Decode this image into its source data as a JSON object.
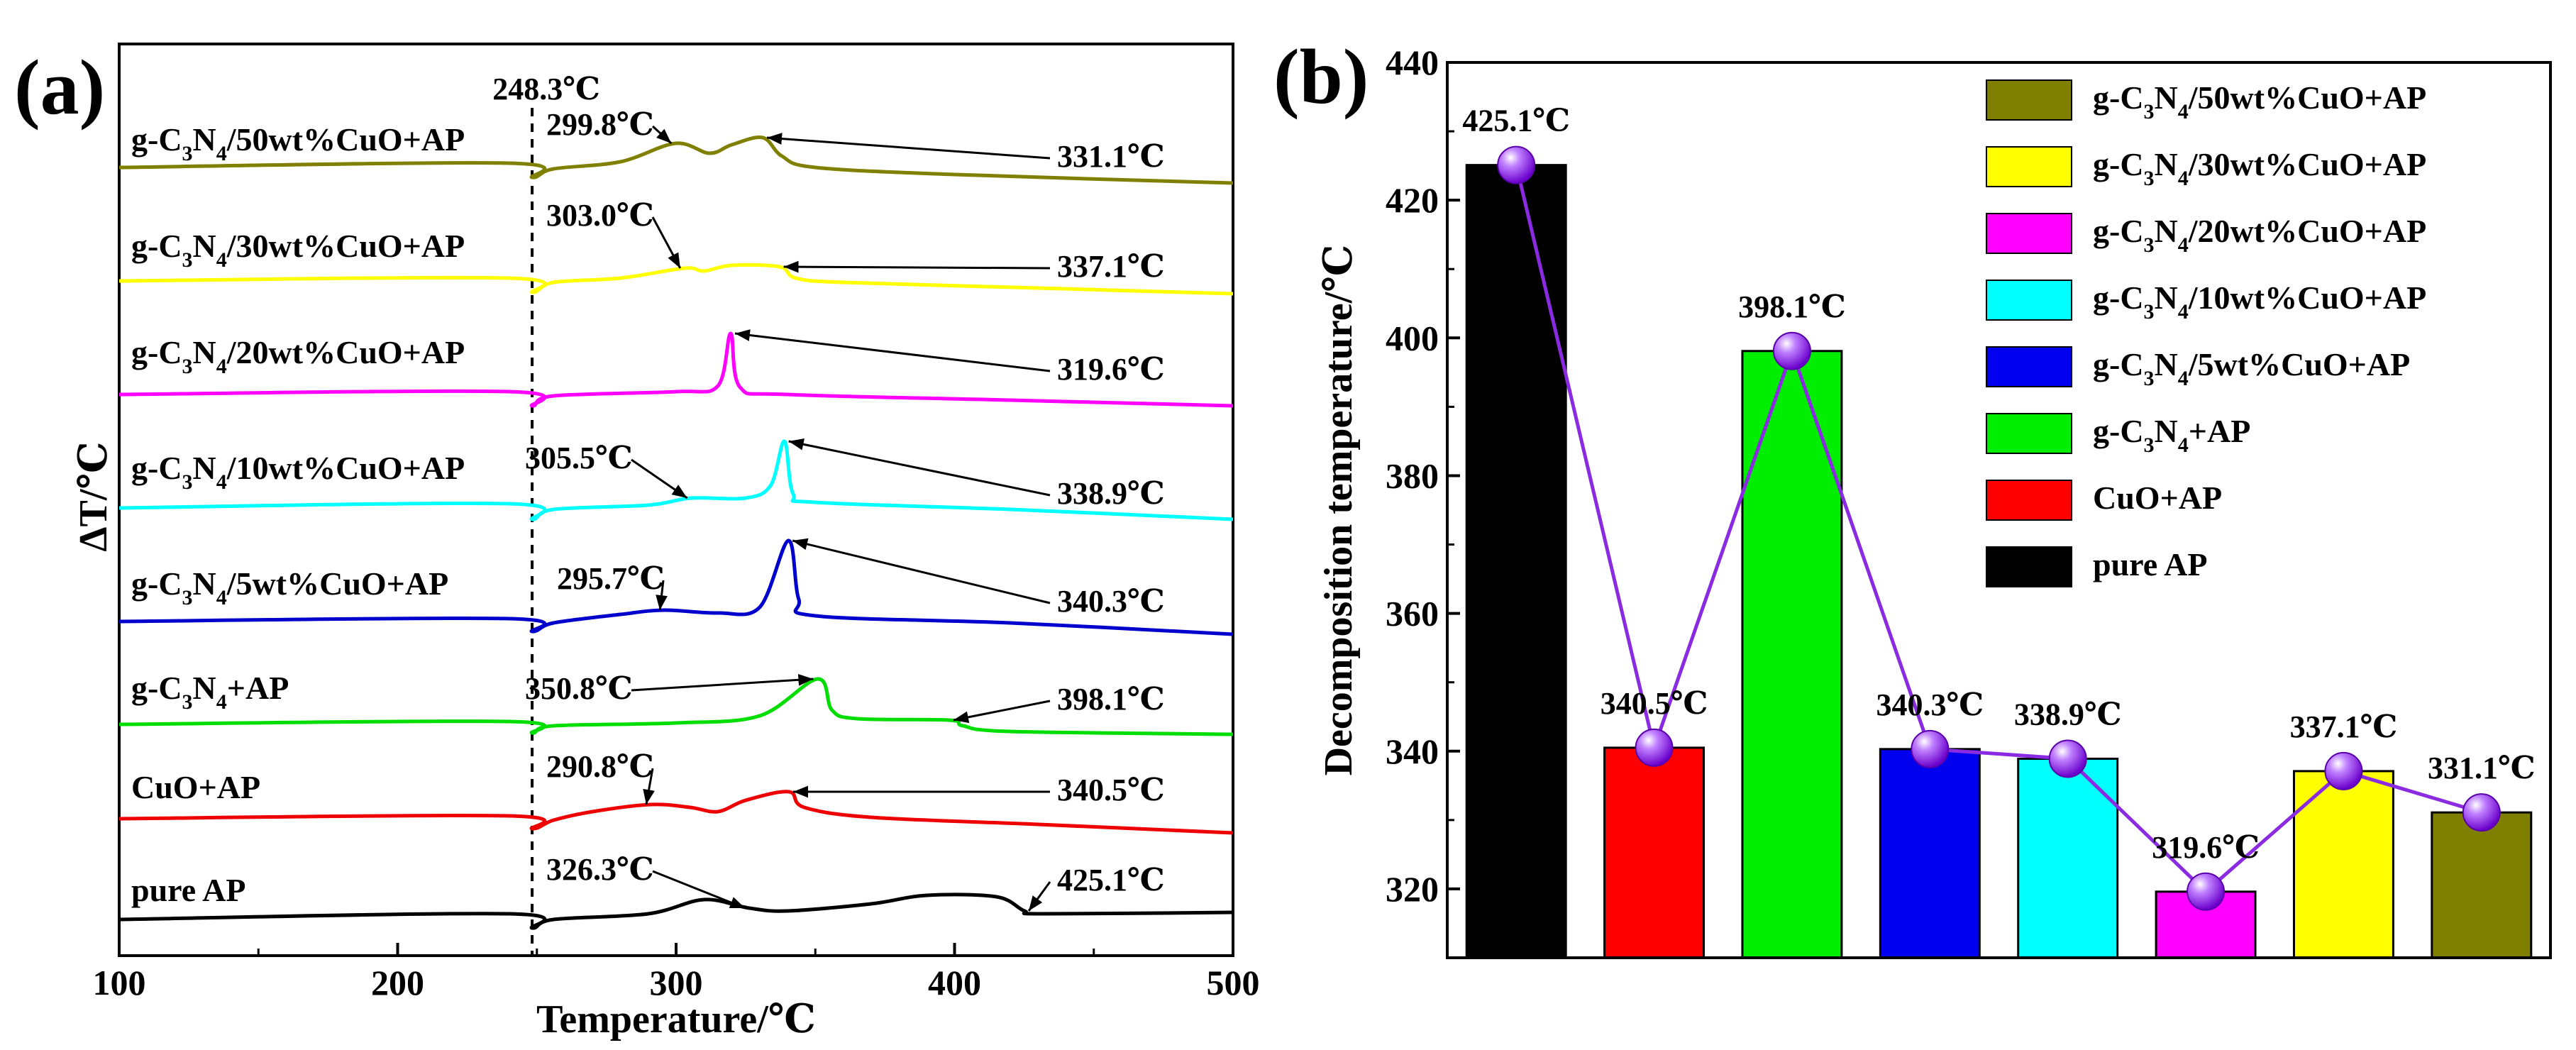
{
  "chart_data": [
    {
      "panel": "(a)",
      "type": "line",
      "title": "",
      "xlabel": "Temperature/℃",
      "ylabel": "ΔT/℃",
      "xlim": [
        100,
        500
      ],
      "xticks": [
        100,
        200,
        300,
        400,
        500
      ],
      "reference_line": {
        "x": 248.3,
        "label": "248.3℃",
        "style": "dashed"
      },
      "series": [
        {
          "name": "g-C3N4/50wt%CuO+AP",
          "label_parts": [
            "g-C",
            "3",
            "N",
            "4",
            "/50wt%CuO+AP"
          ],
          "color": "#808000",
          "points": [
            [
              100,
              0.1
            ],
            [
              240,
              0.25
            ],
            [
              248.3,
              -0.25
            ],
            [
              256,
              0.05
            ],
            [
              280,
              0.3
            ],
            [
              299.8,
              0.95
            ],
            [
              312,
              0.6
            ],
            [
              320,
              0.9
            ],
            [
              331.1,
              1.15
            ],
            [
              338,
              0.5
            ],
            [
              350,
              0.1
            ],
            [
              400,
              -0.15
            ],
            [
              500,
              -0.45
            ]
          ],
          "annotations": [
            {
              "text": "299.8℃",
              "x": 299.8
            },
            {
              "text": "331.1℃",
              "x": 331.1
            }
          ]
        },
        {
          "name": "g-C3N4/30wt%CuO+AP",
          "label_parts": [
            "g-C",
            "3",
            "N",
            "4",
            "/30wt%CuO+AP"
          ],
          "color": "#ffff00",
          "points": [
            [
              100,
              0.1
            ],
            [
              240,
              0.2
            ],
            [
              248.3,
              -0.3
            ],
            [
              256,
              0.05
            ],
            [
              280,
              0.2
            ],
            [
              303.0,
              0.55
            ],
            [
              310,
              0.45
            ],
            [
              320,
              0.65
            ],
            [
              337.1,
              0.6
            ],
            [
              343,
              0.2
            ],
            [
              360,
              0.05
            ],
            [
              430,
              -0.15
            ],
            [
              500,
              -0.35
            ]
          ],
          "annotations": [
            {
              "text": "303.0℃",
              "x": 303.0
            },
            {
              "text": "337.1℃",
              "x": 337.1
            }
          ]
        },
        {
          "name": "g-C3N4/20wt%CuO+AP",
          "label_parts": [
            "g-C",
            "3",
            "N",
            "4",
            "/20wt%CuO+AP"
          ],
          "color": "#ff00ff",
          "points": [
            [
              100,
              0.1
            ],
            [
              240,
              0.2
            ],
            [
              248.3,
              -0.3
            ],
            [
              256,
              0.05
            ],
            [
              300,
              0.2
            ],
            [
              315,
              0.4
            ],
            [
              319.6,
              2.25
            ],
            [
              323,
              0.35
            ],
            [
              340,
              0.1
            ],
            [
              420,
              -0.1
            ],
            [
              500,
              -0.3
            ]
          ],
          "annotations": [
            {
              "text": "319.6℃",
              "x": 319.6
            }
          ]
        },
        {
          "name": "g-C3N4/10wt%CuO+AP",
          "label_parts": [
            "g-C",
            "3",
            "N",
            "4",
            "/10wt%CuO+AP"
          ],
          "color": "#00ffff",
          "points": [
            [
              100,
              0.1
            ],
            [
              240,
              0.25
            ],
            [
              248.3,
              -0.3
            ],
            [
              256,
              0.05
            ],
            [
              290,
              0.2
            ],
            [
              305.5,
              0.45
            ],
            [
              325,
              0.45
            ],
            [
              334,
              0.9
            ],
            [
              338.9,
              2.45
            ],
            [
              342,
              0.6
            ],
            [
              350,
              0.3
            ],
            [
              420,
              0.05
            ],
            [
              500,
              -0.3
            ]
          ],
          "annotations": [
            {
              "text": "305.5℃",
              "x": 305.5
            },
            {
              "text": "338.9℃",
              "x": 338.9
            }
          ]
        },
        {
          "name": "g-C3N4/5wt%CuO+AP",
          "label_parts": [
            "g-C",
            "3",
            "N",
            "4",
            "/5wt%CuO+AP"
          ],
          "color": "#0000cc",
          "points": [
            [
              100,
              0.1
            ],
            [
              240,
              0.2
            ],
            [
              248.3,
              -0.25
            ],
            [
              256,
              0.05
            ],
            [
              280,
              0.35
            ],
            [
              295.7,
              0.5
            ],
            [
              315,
              0.4
            ],
            [
              330,
              0.6
            ],
            [
              340.3,
              2.95
            ],
            [
              344,
              0.9
            ],
            [
              350,
              0.3
            ],
            [
              420,
              0.05
            ],
            [
              500,
              -0.35
            ]
          ],
          "annotations": [
            {
              "text": "295.7℃",
              "x": 295.7
            },
            {
              "text": "340.3℃",
              "x": 340.3
            }
          ]
        },
        {
          "name": "g-C3N4+AP",
          "label_parts": [
            "g-C",
            "3",
            "N",
            "4",
            "+AP"
          ],
          "color": "#00dd00",
          "points": [
            [
              100,
              0.1
            ],
            [
              240,
              0.2
            ],
            [
              248.3,
              -0.2
            ],
            [
              256,
              0.05
            ],
            [
              300,
              0.15
            ],
            [
              330,
              0.4
            ],
            [
              350.8,
              1.7
            ],
            [
              356,
              0.6
            ],
            [
              365,
              0.3
            ],
            [
              398.1,
              0.25
            ],
            [
              403,
              0.05
            ],
            [
              420,
              -0.15
            ],
            [
              500,
              -0.25
            ]
          ],
          "annotations": [
            {
              "text": "350.8℃",
              "x": 350.8
            },
            {
              "text": "398.1℃",
              "x": 398.1
            }
          ]
        },
        {
          "name": "CuO+AP",
          "label_parts": [
            "CuO+AP"
          ],
          "color": "#ee0000",
          "points": [
            [
              100,
              0.1
            ],
            [
              240,
              0.2
            ],
            [
              248.3,
              -0.25
            ],
            [
              256,
              0.05
            ],
            [
              270,
              0.35
            ],
            [
              290.8,
              0.6
            ],
            [
              305,
              0.5
            ],
            [
              315,
              0.35
            ],
            [
              325,
              0.75
            ],
            [
              340.5,
              1.05
            ],
            [
              346,
              0.5
            ],
            [
              370,
              0.15
            ],
            [
              430,
              -0.1
            ],
            [
              500,
              -0.4
            ]
          ],
          "annotations": [
            {
              "text": "290.8℃",
              "x": 290.8
            },
            {
              "text": "340.5℃",
              "x": 340.5
            }
          ]
        },
        {
          "name": "pure AP",
          "label_parts": [
            "pure AP"
          ],
          "color": "#000000",
          "points": [
            [
              100,
              0.1
            ],
            [
              240,
              0.3
            ],
            [
              248.3,
              -0.2
            ],
            [
              256,
              0.1
            ],
            [
              290,
              0.3
            ],
            [
              310,
              0.8
            ],
            [
              326.3,
              0.5
            ],
            [
              340,
              0.4
            ],
            [
              370,
              0.65
            ],
            [
              390,
              0.95
            ],
            [
              415,
              0.9
            ],
            [
              425.1,
              0.4
            ],
            [
              432,
              0.3
            ],
            [
              500,
              0.35
            ]
          ],
          "annotations": [
            {
              "text": "326.3℃",
              "x": 326.3
            },
            {
              "text": "425.1℃",
              "x": 425.1
            }
          ]
        }
      ]
    },
    {
      "panel": "(b)",
      "type": "bar",
      "title": "",
      "xlabel": "",
      "ylabel": "Decomposition temperature/℃",
      "ylim": [
        310,
        440
      ],
      "yticks": [
        320,
        340,
        360,
        380,
        400,
        420,
        440
      ],
      "categories": [
        "pure AP",
        "CuO+AP",
        "g-C3N4+AP",
        "g-C3N4/5wt%CuO+AP",
        "g-C3N4/10wt%CuO+AP",
        "g-C3N4/20wt%CuO+AP",
        "g-C3N4/30wt%CuO+AP",
        "g-C3N4/50wt%CuO+AP"
      ],
      "values": [
        425.1,
        340.5,
        398.1,
        340.3,
        338.9,
        319.6,
        337.1,
        331.1
      ],
      "value_labels": [
        "425.1℃",
        "340.5℃",
        "398.1℃",
        "340.3℃",
        "338.9℃",
        "319.6℃",
        "337.1℃",
        "331.1℃"
      ],
      "colors": [
        "#000000",
        "#ff0000",
        "#00ee00",
        "#0000ee",
        "#00ffff",
        "#ff00ff",
        "#ffff00",
        "#808000"
      ],
      "overlay_line_color": "#8a2be2",
      "legend_position": "top-right",
      "legend": [
        {
          "parts": [
            "g-C",
            "3",
            "N",
            "4",
            "/50wt%CuO+AP"
          ],
          "color": "#808000"
        },
        {
          "parts": [
            "g-C",
            "3",
            "N",
            "4",
            "/30wt%CuO+AP"
          ],
          "color": "#ffff00"
        },
        {
          "parts": [
            "g-C",
            "3",
            "N",
            "4",
            "/20wt%CuO+AP"
          ],
          "color": "#ff00ff"
        },
        {
          "parts": [
            "g-C",
            "3",
            "N",
            "4",
            "/10wt%CuO+AP"
          ],
          "color": "#00ffff"
        },
        {
          "parts": [
            "g-C",
            "3",
            "N",
            "4",
            "/5wt%CuO+AP"
          ],
          "color": "#0000ee"
        },
        {
          "parts": [
            "g-C",
            "3",
            "N",
            "4",
            "+AP"
          ],
          "color": "#00ee00"
        },
        {
          "parts": [
            "CuO+AP"
          ],
          "color": "#ff0000"
        },
        {
          "parts": [
            "pure AP"
          ],
          "color": "#000000"
        }
      ]
    }
  ]
}
